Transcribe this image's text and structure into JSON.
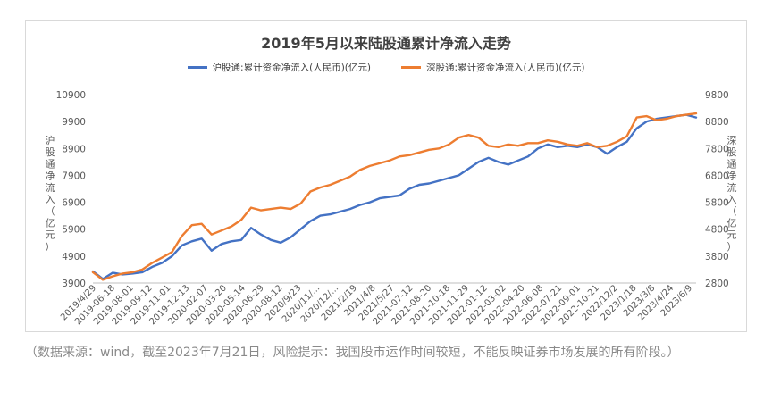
{
  "chart_data": {
    "type": "line",
    "title": "2019年5月以来陆股通累计净流入走势",
    "left_axis": {
      "label": "沪股通净流入（亿元）",
      "ticks": [
        3900,
        4900,
        5900,
        6900,
        7900,
        8900,
        9900,
        10900
      ],
      "ylim": [
        3900,
        10900
      ]
    },
    "right_axis": {
      "label": "深股通净流入（亿元）",
      "ticks": [
        2800,
        3800,
        4800,
        5800,
        6800,
        7800,
        8800,
        9800
      ],
      "ylim": [
        2800,
        9800
      ]
    },
    "x_tick_labels": [
      "2019/4/29",
      "2019-06-18",
      "2019-08-01",
      "2019-09-12",
      "2019-11-01",
      "2019-12-13",
      "2020-02-07",
      "2020-03-20",
      "2020-05-14",
      "2020-06-29",
      "2020-08-12",
      "2020/9/23",
      "2020/11/...",
      "2020/12/...",
      "2021/2/19",
      "2021/4/8",
      "2021/5/27",
      "2021-07-12",
      "2021-08-20",
      "2021-10-18",
      "2021-11-29",
      "2022-01-12",
      "2022-03-02",
      "2022-04-20",
      "2022-06-08",
      "2022-07-21",
      "2022-09-01",
      "2022-10-21",
      "2022/12/2",
      "2023/1/18",
      "2023/3/8",
      "2023/4/24",
      "2023/6/9"
    ],
    "grid": false,
    "legend_position": "top",
    "series": [
      {
        "name": "沪股通:累计资金净流入(人民币)(亿元)",
        "axis": "left",
        "color": "#4472c4",
        "values": [
          4330,
          4050,
          4280,
          4220,
          4250,
          4300,
          4500,
          4650,
          4900,
          5300,
          5450,
          5550,
          5100,
          5350,
          5450,
          5500,
          5950,
          5700,
          5500,
          5400,
          5600,
          5900,
          6200,
          6400,
          6450,
          6550,
          6650,
          6800,
          6900,
          7050,
          7100,
          7150,
          7400,
          7550,
          7600,
          7700,
          7800,
          7900,
          8150,
          8400,
          8550,
          8400,
          8300,
          8450,
          8600,
          8900,
          9050,
          8950,
          9000,
          8950,
          9050,
          8950,
          8700,
          8950,
          9150,
          9650,
          9900,
          10000,
          10050,
          10100,
          10150,
          10050
        ]
      },
      {
        "name": "深股通:累计资金净流入(人民币)(亿元)",
        "axis": "right",
        "color": "#ed7d31",
        "values": [
          3200,
          2920,
          3050,
          3150,
          3200,
          3300,
          3550,
          3750,
          3950,
          4550,
          4950,
          5000,
          4600,
          4750,
          4900,
          5150,
          5600,
          5500,
          5550,
          5600,
          5550,
          5750,
          6200,
          6350,
          6450,
          6600,
          6750,
          7000,
          7150,
          7250,
          7350,
          7500,
          7550,
          7650,
          7750,
          7800,
          7950,
          8200,
          8300,
          8200,
          7900,
          7850,
          7950,
          7900,
          8000,
          8000,
          8100,
          8050,
          7950,
          7900,
          8000,
          7850,
          7900,
          8050,
          8250,
          8950,
          9000,
          8850,
          8900,
          9000,
          9050,
          9100
        ]
      }
    ]
  },
  "footer": {
    "note": "（数据来源：wind，截至2023年7月21日，风险提示：我国股市运作时间较短，不能反映证券市场发展的所有阶段。）"
  }
}
